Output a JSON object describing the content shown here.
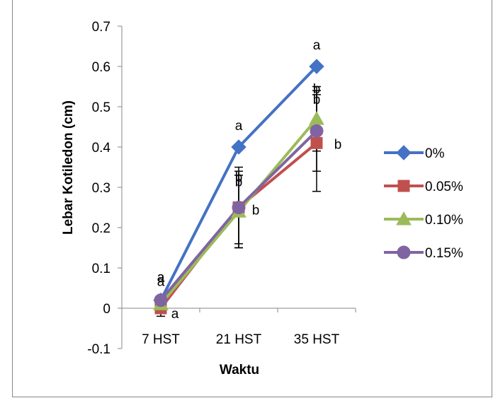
{
  "chart_data": {
    "type": "line",
    "title": "",
    "xlabel": "Waktu",
    "ylabel": "Lebar Kotiledon (cm)",
    "categories": [
      "7 HST",
      "21 HST",
      "35 HST"
    ],
    "ylim": [
      -0.1,
      0.7
    ],
    "yticks": [
      "-0.1",
      "0",
      "0.1",
      "0.2",
      "0.3",
      "0.4",
      "0.5",
      "0.6",
      "0.7"
    ],
    "grid": false,
    "legend_position": "right",
    "series": [
      {
        "name": "0%",
        "color": "#4472C4",
        "marker": "diamond",
        "values": [
          0.02,
          0.4,
          0.6
        ],
        "error": [
          0.0,
          0.0,
          0.0
        ],
        "labels": [
          "a",
          "a",
          "a"
        ]
      },
      {
        "name": "0.05%",
        "color": "#C0504D",
        "marker": "square",
        "values": [
          0.0,
          0.25,
          0.41
        ],
        "error": [
          0.02,
          0.1,
          0.12
        ],
        "labels": [
          "a",
          "b",
          "b"
        ]
      },
      {
        "name": "0.10%",
        "color": "#9BBB59",
        "marker": "triangle",
        "values": [
          0.01,
          0.24,
          0.47
        ],
        "error": [
          0.02,
          0.09,
          0.08
        ],
        "labels": [
          "a",
          "b",
          "b"
        ]
      },
      {
        "name": "0.15%",
        "color": "#8064A2",
        "marker": "circle",
        "values": [
          0.02,
          0.25,
          0.44
        ],
        "error": [
          0.01,
          0.09,
          0.1
        ],
        "labels": [
          "a",
          "b",
          "b"
        ]
      }
    ]
  }
}
